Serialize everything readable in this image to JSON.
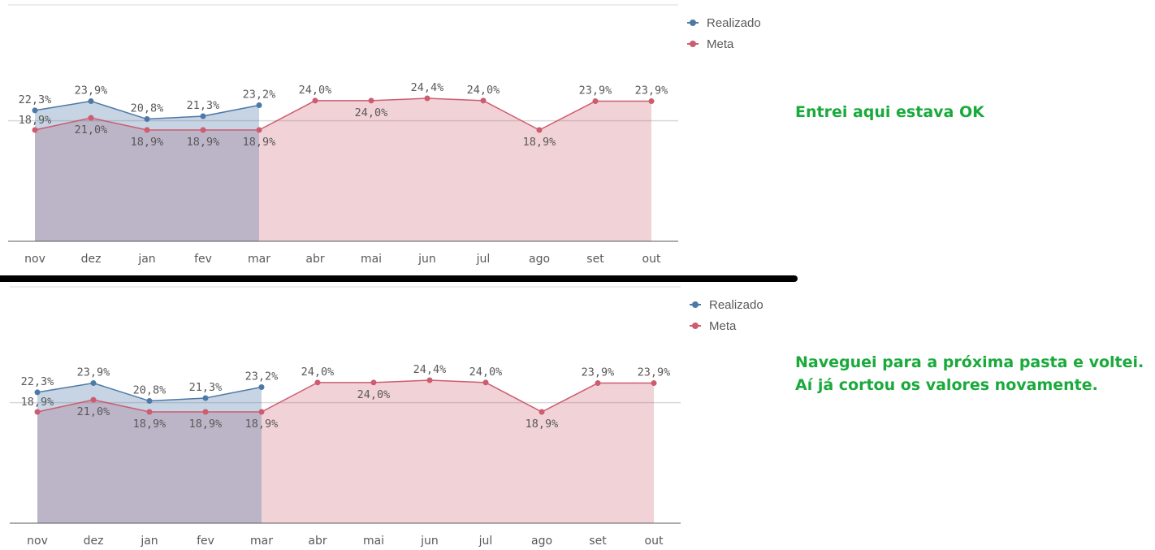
{
  "chart_data": [
    {
      "type": "area",
      "categories": [
        "nov",
        "dez",
        "jan",
        "fev",
        "mar",
        "abr",
        "mai",
        "jun",
        "jul",
        "ago",
        "set",
        "out"
      ],
      "series": [
        {
          "name": "Realizado",
          "color": "#4e79a7",
          "values": [
            22.3,
            23.9,
            20.8,
            21.3,
            23.2,
            null,
            null,
            null,
            null,
            null,
            null,
            null
          ],
          "labels": [
            "22,3%",
            "23,9%",
            "20,8%",
            "21,3%",
            "23,2%",
            "",
            "",
            "",
            "",
            "",
            "",
            ""
          ]
        },
        {
          "name": "Meta",
          "color": "#cd5c6e",
          "values": [
            18.9,
            21.0,
            18.9,
            18.9,
            18.9,
            24.0,
            24.0,
            24.4,
            24.0,
            18.9,
            23.9,
            23.9
          ],
          "labels": [
            "18,9%",
            "21,0%",
            "18,9%",
            "18,9%",
            "18,9%",
            "24,0%",
            "24,0%",
            "24,4%",
            "24,0%",
            "18,9%",
            "23,9%",
            "23,9%"
          ]
        }
      ],
      "legend": "top-right",
      "reference_line": 20.5
    },
    {
      "type": "area",
      "categories": [
        "nov",
        "dez",
        "jan",
        "fev",
        "mar",
        "abr",
        "mai",
        "jun",
        "jul",
        "ago",
        "set",
        "out"
      ],
      "series": [
        {
          "name": "Realizado",
          "color": "#4e79a7",
          "values": [
            22.3,
            23.9,
            20.8,
            21.3,
            23.2,
            null,
            null,
            null,
            null,
            null,
            null,
            null
          ],
          "labels": [
            "22,3%",
            "23,9%",
            "20,8%",
            "21,3%",
            "23,2%",
            "",
            "",
            "",
            "",
            "",
            "",
            ""
          ]
        },
        {
          "name": "Meta",
          "color": "#cd5c6e",
          "values": [
            18.9,
            21.0,
            18.9,
            18.9,
            18.9,
            24.0,
            24.0,
            24.4,
            24.0,
            18.9,
            23.9,
            23.9
          ],
          "labels": [
            "18,9%",
            "21,0%",
            "18,9%",
            "18,9%",
            "18,9%",
            "24,0%",
            "24,0%",
            "24,4%",
            "24,0%",
            "18,9%",
            "23,9%",
            "23,9%"
          ]
        }
      ],
      "legend": "top-right",
      "reference_line": 20.5
    }
  ],
  "annotations": {
    "top": [
      "Entrei aqui estava OK"
    ],
    "bottom": [
      "Naveguei para a próxima pasta e voltei.",
      "Aí já cortou os valores novamente."
    ]
  }
}
